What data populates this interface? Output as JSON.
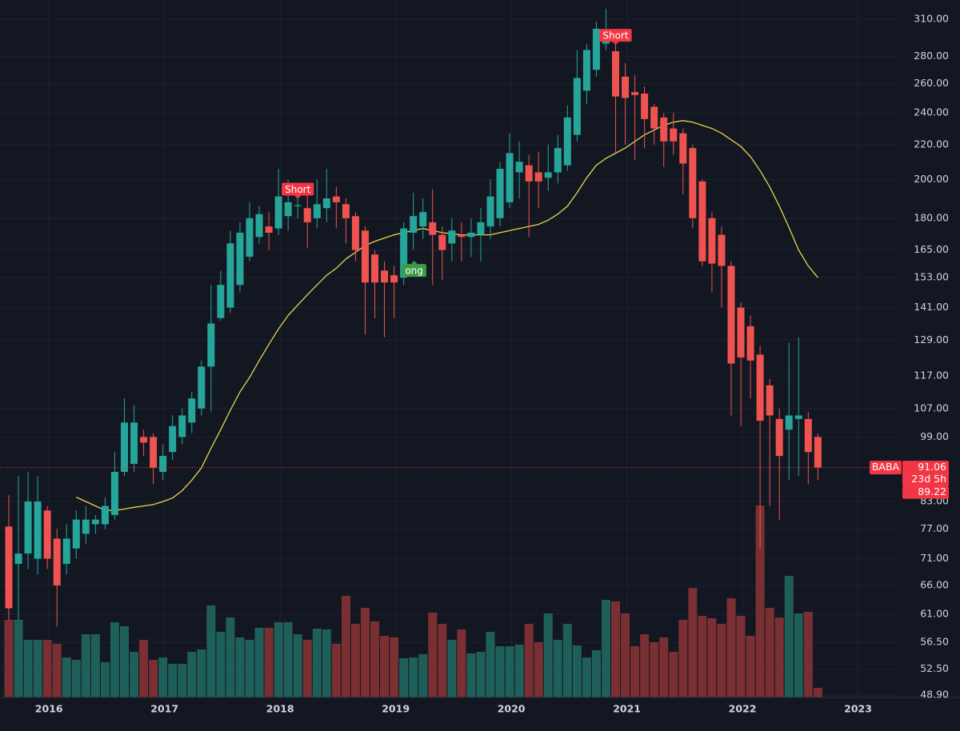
{
  "chart_data": {
    "type": "candlestick",
    "log_scale": true,
    "grid": true,
    "up_color": "#26a69a",
    "down_color": "#ef5350",
    "volume_up_color": "#1f5f5a",
    "volume_down_color": "#7a2f33",
    "ylim": [
      48.6,
      326.7
    ],
    "yticks": [
      {
        "value": 310,
        "label": "310.00"
      },
      {
        "value": 280,
        "label": "280.00"
      },
      {
        "value": 260,
        "label": "260.00"
      },
      {
        "value": 240,
        "label": "240.00"
      },
      {
        "value": 220,
        "label": "220.00"
      },
      {
        "value": 200,
        "label": "200.00"
      },
      {
        "value": 180,
        "label": "180.00"
      },
      {
        "value": 165,
        "label": "165.00"
      },
      {
        "value": 153,
        "label": "153.00"
      },
      {
        "value": 141,
        "label": "141.00"
      },
      {
        "value": 129,
        "label": "129.00"
      },
      {
        "value": 117,
        "label": "117.00"
      },
      {
        "value": 107,
        "label": "107.00"
      },
      {
        "value": 99,
        "label": "99.00"
      },
      {
        "value": 83,
        "label": "83.00"
      },
      {
        "value": 77,
        "label": "77.00"
      },
      {
        "value": 71,
        "label": "71.00"
      },
      {
        "value": 66,
        "label": "66.00"
      },
      {
        "value": 61,
        "label": "61.00"
      },
      {
        "value": 56.5,
        "label": "56.50"
      },
      {
        "value": 52.5,
        "label": "52.50"
      },
      {
        "value": 48.9,
        "label": "48.90"
      }
    ],
    "volume_ylim": [
      0,
      1300
    ],
    "categories": [
      null,
      null,
      null,
      null,
      null,
      "2016",
      null,
      null,
      null,
      null,
      null,
      null,
      null,
      null,
      null,
      null,
      null,
      "2017",
      null,
      null,
      null,
      null,
      null,
      null,
      null,
      null,
      null,
      null,
      null,
      "2018",
      null,
      null,
      null,
      null,
      null,
      null,
      null,
      null,
      null,
      null,
      null,
      "2019",
      null,
      null,
      null,
      null,
      null,
      null,
      null,
      null,
      null,
      null,
      null,
      "2020",
      null,
      null,
      null,
      null,
      null,
      null,
      null,
      null,
      null,
      null,
      null,
      "2021",
      null,
      null,
      null,
      null,
      null,
      null,
      null,
      null,
      null,
      null,
      null,
      "2022",
      null,
      null,
      null,
      null,
      null,
      null,
      null,
      null,
      null,
      null,
      null,
      "2023"
    ],
    "open": [
      77.5,
      70,
      72,
      71,
      81,
      75,
      70,
      73,
      76,
      78,
      78,
      80,
      90,
      92,
      99,
      99,
      90,
      95,
      99,
      103,
      107,
      120,
      137,
      141,
      150,
      162,
      171,
      176,
      175,
      181,
      186,
      185,
      180,
      185,
      191,
      187,
      181,
      174,
      163,
      156,
      154,
      153,
      173,
      176,
      178,
      172,
      168,
      172,
      171,
      172,
      176,
      180,
      188,
      204,
      208,
      204,
      201,
      204,
      208,
      226,
      255,
      270,
      290,
      284,
      265,
      254,
      253,
      244,
      237,
      230,
      227,
      218,
      199,
      180,
      172,
      158,
      141,
      134,
      124,
      114,
      104,
      101,
      104,
      104,
      99,
      null,
      null,
      null,
      null,
      null
    ],
    "high": [
      84.5,
      89,
      90,
      89,
      82,
      77,
      78,
      81,
      82,
      80,
      84,
      95,
      110,
      108,
      101,
      100,
      97,
      105,
      107,
      112,
      122,
      150,
      156,
      174,
      178,
      188,
      186,
      183,
      206,
      200,
      195,
      197,
      200,
      206,
      196,
      190,
      183,
      176,
      165,
      160,
      158,
      178,
      193,
      190,
      195,
      176,
      180,
      178,
      180,
      185,
      200,
      210,
      227,
      222,
      214,
      216,
      220,
      226,
      245,
      285,
      290,
      308,
      319,
      300,
      275,
      266,
      258,
      246,
      240,
      240,
      230,
      220,
      200,
      183,
      176,
      160,
      143,
      138,
      127,
      116,
      107,
      128,
      130,
      106,
      100,
      null,
      null,
      null,
      null,
      null
    ],
    "low": [
      60,
      60,
      69,
      68,
      69,
      59,
      68,
      71,
      74,
      76,
      77,
      79,
      89,
      90,
      94,
      87,
      88,
      93,
      97,
      100,
      105,
      106,
      136,
      139,
      147,
      160,
      168,
      165,
      172,
      174,
      180,
      166,
      175,
      178,
      175,
      168,
      160,
      131,
      137,
      130,
      137,
      150,
      165,
      170,
      150,
      152,
      160,
      160,
      162,
      160,
      170,
      176,
      185,
      190,
      171,
      185,
      194,
      198,
      205,
      222,
      246,
      265,
      285,
      215,
      220,
      211,
      218,
      220,
      207,
      214,
      192,
      175,
      158,
      147,
      141,
      105,
      102,
      110,
      73,
      82,
      79,
      88,
      89,
      87,
      88,
      null,
      null,
      null,
      null,
      null
    ],
    "close": [
      62,
      72,
      83,
      83,
      71,
      66,
      75,
      79,
      79,
      79,
      82,
      90,
      103,
      103,
      97.5,
      91,
      94,
      102,
      105,
      110,
      120,
      135,
      150,
      168,
      173,
      180,
      182,
      173,
      191,
      188,
      186.5,
      178,
      187,
      190,
      188,
      180,
      165,
      151,
      151,
      151,
      151,
      175,
      181,
      183,
      172,
      165,
      174,
      171,
      173,
      178,
      191,
      206,
      215,
      210,
      199,
      199,
      204,
      218,
      237,
      264,
      285,
      302,
      301,
      251,
      250,
      252,
      236,
      230,
      222,
      222,
      209,
      180,
      160,
      159,
      158,
      121,
      123,
      122,
      103.5,
      105,
      94,
      105,
      105,
      95,
      91.06,
      null,
      null,
      null,
      null,
      null
    ],
    "volume": [
      485,
      485,
      360,
      360,
      360,
      335,
      250,
      235,
      395,
      395,
      220,
      470,
      445,
      285,
      360,
      235,
      250,
      210,
      210,
      285,
      300,
      575,
      410,
      500,
      375,
      360,
      435,
      435,
      470,
      470,
      395,
      360,
      430,
      425,
      335,
      635,
      460,
      560,
      475,
      385,
      375,
      245,
      250,
      270,
      530,
      460,
      360,
      425,
      275,
      285,
      410,
      320,
      320,
      330,
      460,
      345,
      525,
      360,
      460,
      325,
      250,
      295,
      610,
      600,
      525,
      320,
      395,
      345,
      375,
      285,
      485,
      685,
      510,
      495,
      460,
      620,
      510,
      385,
      1200,
      560,
      500,
      760,
      525,
      535,
      60,
      null,
      null,
      null,
      null,
      null
    ],
    "ma": {
      "color": "#e8d44d",
      "values": [
        null,
        null,
        null,
        null,
        null,
        null,
        null,
        84,
        83,
        82,
        81,
        81,
        81.3,
        81.7,
        82,
        82.3,
        83,
        83.8,
        85.5,
        88,
        91,
        96,
        101,
        106.5,
        112,
        116.5,
        122,
        127.5,
        133,
        138,
        142,
        146,
        150,
        154,
        157,
        161,
        164,
        167,
        169,
        170.5,
        172,
        173,
        174,
        175,
        174,
        173,
        172.5,
        172,
        172,
        172,
        172,
        173,
        174,
        175,
        176,
        177,
        179,
        182,
        186,
        193,
        201,
        208,
        212,
        215,
        218,
        222,
        226,
        229,
        232,
        234,
        235,
        234,
        232,
        230,
        227,
        223,
        219,
        213,
        205,
        196,
        186,
        175.5,
        165,
        158,
        153,
        null,
        null,
        null,
        null,
        null
      ]
    },
    "annotations": [
      {
        "text": "Short",
        "index": 30,
        "color": "#f23645",
        "placement": "above"
      },
      {
        "text": "ong",
        "index": 41,
        "color": "#3d9a47",
        "placement": "below"
      },
      {
        "text": "Short",
        "index": 63,
        "color": "#f23645",
        "placement": "above"
      }
    ],
    "price_labels": {
      "symbol": "BABA",
      "last": 91.06,
      "countdown": "23d 5h",
      "other": 89.22,
      "color": "#f23645"
    }
  }
}
